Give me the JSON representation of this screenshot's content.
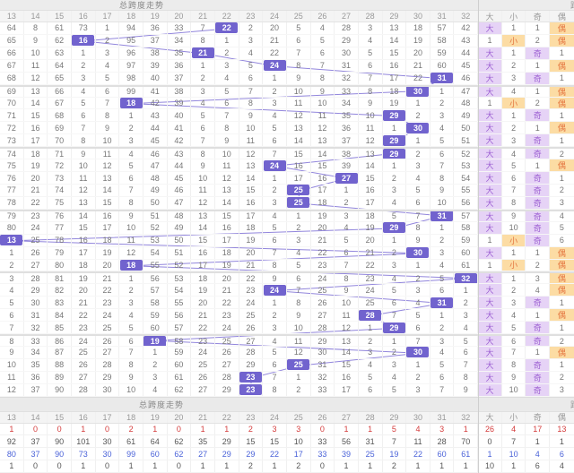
{
  "title": "总跨度走势",
  "right_partial_title": "跨",
  "footer": {
    "title": "总跨度走势",
    "right_partial_title": "跨"
  },
  "colors": {
    "highlight": "#7163CE",
    "trend_line": "#8C7FDA",
    "purple_bg": "#E6D3F6",
    "purple_text": "#9C5FD2",
    "orange_bg": "#FCDCA4",
    "orange_text": "#E4743E",
    "red": "#D43B3B",
    "blue": "#4A62D8"
  },
  "chart_data": {
    "type": "table",
    "title": "总跨度走势",
    "columns": [
      "13",
      "14",
      "15",
      "16",
      "17",
      "18",
      "19",
      "20",
      "21",
      "22",
      "23",
      "24",
      "25",
      "26",
      "27",
      "28",
      "29",
      "30",
      "31",
      "32",
      "大",
      "小",
      "奇",
      "偶"
    ],
    "span_min": 13,
    "span_max": 32,
    "highlight_sequence": [
      22,
      16,
      21,
      24,
      31,
      30,
      18,
      29,
      30,
      29,
      29,
      24,
      27,
      25,
      25,
      31,
      29,
      13,
      30,
      18,
      32,
      24,
      31,
      28,
      29,
      19,
      30,
      25,
      23,
      23
    ],
    "rows": [
      {
        "miss": [
          "64",
          "8",
          "61",
          "73",
          "1",
          "94",
          "36",
          "33",
          "7",
          "22",
          "2",
          "20",
          "5",
          "4",
          "28",
          "3",
          "13",
          "18",
          "57",
          "42"
        ],
        "hl": 22,
        "dxjo": [
          "大",
          "1",
          "1",
          "偶"
        ]
      },
      {
        "miss": [
          "65",
          "9",
          "62",
          "16",
          "2",
          "95",
          "37",
          "34",
          "8",
          "1",
          "3",
          "21",
          "6",
          "5",
          "29",
          "4",
          "14",
          "19",
          "58",
          "43"
        ],
        "hl": 16,
        "dxjo": [
          "1",
          "小",
          "2",
          "偶"
        ]
      },
      {
        "miss": [
          "66",
          "10",
          "63",
          "1",
          "3",
          "96",
          "38",
          "35",
          "21",
          "2",
          "4",
          "22",
          "7",
          "6",
          "30",
          "5",
          "15",
          "20",
          "59",
          "44"
        ],
        "hl": 21,
        "dxjo": [
          "大",
          "1",
          "奇",
          "1"
        ]
      },
      {
        "miss": [
          "67",
          "11",
          "64",
          "2",
          "4",
          "97",
          "39",
          "36",
          "1",
          "3",
          "5",
          "24",
          "8",
          "7",
          "31",
          "6",
          "16",
          "21",
          "60",
          "45"
        ],
        "hl": 24,
        "dxjo": [
          "大",
          "2",
          "1",
          "偶"
        ]
      },
      {
        "miss": [
          "68",
          "12",
          "65",
          "3",
          "5",
          "98",
          "40",
          "37",
          "2",
          "4",
          "6",
          "1",
          "9",
          "8",
          "32",
          "7",
          "17",
          "22",
          "31",
          "46"
        ],
        "hl": 31,
        "dxjo": [
          "大",
          "3",
          "奇",
          "1"
        ]
      },
      {
        "miss": [
          "69",
          "13",
          "66",
          "4",
          "6",
          "99",
          "41",
          "38",
          "3",
          "5",
          "7",
          "2",
          "10",
          "9",
          "33",
          "8",
          "18",
          "30",
          "1",
          "47"
        ],
        "hl": 30,
        "dxjo": [
          "大",
          "4",
          "1",
          "偶"
        ]
      },
      {
        "miss": [
          "70",
          "14",
          "67",
          "5",
          "7",
          "18",
          "42",
          "39",
          "4",
          "6",
          "8",
          "3",
          "11",
          "10",
          "34",
          "9",
          "19",
          "1",
          "2",
          "48"
        ],
        "hl": 18,
        "dxjo": [
          "1",
          "小",
          "2",
          "偶"
        ]
      },
      {
        "miss": [
          "71",
          "15",
          "68",
          "6",
          "8",
          "1",
          "43",
          "40",
          "5",
          "7",
          "9",
          "4",
          "12",
          "11",
          "35",
          "10",
          "29",
          "2",
          "3",
          "49"
        ],
        "hl": 29,
        "dxjo": [
          "大",
          "1",
          "奇",
          "1"
        ]
      },
      {
        "miss": [
          "72",
          "16",
          "69",
          "7",
          "9",
          "2",
          "44",
          "41",
          "6",
          "8",
          "10",
          "5",
          "13",
          "12",
          "36",
          "11",
          "1",
          "30",
          "4",
          "50"
        ],
        "hl": 30,
        "dxjo": [
          "大",
          "2",
          "1",
          "偶"
        ]
      },
      {
        "miss": [
          "73",
          "17",
          "70",
          "8",
          "10",
          "3",
          "45",
          "42",
          "7",
          "9",
          "11",
          "6",
          "14",
          "13",
          "37",
          "12",
          "29",
          "1",
          "5",
          "51"
        ],
        "hl": 29,
        "dxjo": [
          "大",
          "3",
          "奇",
          "1"
        ]
      },
      {
        "miss": [
          "74",
          "18",
          "71",
          "9",
          "11",
          "4",
          "46",
          "43",
          "8",
          "10",
          "12",
          "7",
          "15",
          "14",
          "38",
          "13",
          "29",
          "2",
          "6",
          "52"
        ],
        "hl": 29,
        "dxjo": [
          "大",
          "4",
          "奇",
          "2"
        ]
      },
      {
        "miss": [
          "75",
          "19",
          "72",
          "10",
          "12",
          "5",
          "47",
          "44",
          "9",
          "11",
          "13",
          "24",
          "16",
          "15",
          "39",
          "14",
          "1",
          "3",
          "7",
          "53"
        ],
        "hl": 24,
        "dxjo": [
          "大",
          "5",
          "1",
          "偶"
        ]
      },
      {
        "miss": [
          "76",
          "20",
          "73",
          "11",
          "13",
          "6",
          "48",
          "45",
          "10",
          "12",
          "14",
          "1",
          "17",
          "16",
          "27",
          "15",
          "2",
          "4",
          "8",
          "54"
        ],
        "hl": 27,
        "dxjo": [
          "大",
          "6",
          "奇",
          "1"
        ]
      },
      {
        "miss": [
          "77",
          "21",
          "74",
          "12",
          "14",
          "7",
          "49",
          "46",
          "11",
          "13",
          "15",
          "2",
          "25",
          "17",
          "1",
          "16",
          "3",
          "5",
          "9",
          "55"
        ],
        "hl": 25,
        "dxjo": [
          "大",
          "7",
          "奇",
          "2"
        ]
      },
      {
        "miss": [
          "78",
          "22",
          "75",
          "13",
          "15",
          "8",
          "50",
          "47",
          "12",
          "14",
          "16",
          "3",
          "25",
          "18",
          "2",
          "17",
          "4",
          "6",
          "10",
          "56"
        ],
        "hl": 25,
        "dxjo": [
          "大",
          "8",
          "奇",
          "3"
        ]
      },
      {
        "miss": [
          "79",
          "23",
          "76",
          "14",
          "16",
          "9",
          "51",
          "48",
          "13",
          "15",
          "17",
          "4",
          "1",
          "19",
          "3",
          "18",
          "5",
          "7",
          "31",
          "57"
        ],
        "hl": 31,
        "dxjo": [
          "大",
          "9",
          "奇",
          "4"
        ]
      },
      {
        "miss": [
          "80",
          "24",
          "77",
          "15",
          "17",
          "10",
          "52",
          "49",
          "14",
          "16",
          "18",
          "5",
          "2",
          "20",
          "4",
          "19",
          "29",
          "8",
          "1",
          "58"
        ],
        "hl": 29,
        "dxjo": [
          "大",
          "10",
          "奇",
          "5"
        ]
      },
      {
        "miss": [
          "13",
          "25",
          "78",
          "16",
          "18",
          "11",
          "53",
          "50",
          "15",
          "17",
          "19",
          "6",
          "3",
          "21",
          "5",
          "20",
          "1",
          "9",
          "2",
          "59"
        ],
        "hl": 13,
        "dxjo": [
          "1",
          "小",
          "奇",
          "6"
        ]
      },
      {
        "miss": [
          "1",
          "26",
          "79",
          "17",
          "19",
          "12",
          "54",
          "51",
          "16",
          "18",
          "20",
          "7",
          "4",
          "22",
          "6",
          "21",
          "2",
          "30",
          "3",
          "60"
        ],
        "hl": 30,
        "dxjo": [
          "大",
          "1",
          "1",
          "偶"
        ]
      },
      {
        "miss": [
          "2",
          "27",
          "80",
          "18",
          "20",
          "18",
          "55",
          "52",
          "17",
          "19",
          "21",
          "8",
          "5",
          "23",
          "7",
          "22",
          "3",
          "1",
          "4",
          "61"
        ],
        "hl": 18,
        "dxjo": [
          "1",
          "小",
          "2",
          "偶"
        ]
      },
      {
        "miss": [
          "3",
          "28",
          "81",
          "19",
          "21",
          "1",
          "56",
          "53",
          "18",
          "20",
          "22",
          "9",
          "6",
          "24",
          "8",
          "23",
          "4",
          "2",
          "5",
          "32"
        ],
        "hl": 32,
        "dxjo": [
          "大",
          "1",
          "3",
          "偶"
        ]
      },
      {
        "miss": [
          "4",
          "29",
          "82",
          "20",
          "22",
          "2",
          "57",
          "54",
          "19",
          "21",
          "23",
          "24",
          "7",
          "25",
          "9",
          "24",
          "5",
          "3",
          "6",
          "1"
        ],
        "hl": 24,
        "dxjo": [
          "大",
          "2",
          "4",
          "偶"
        ]
      },
      {
        "miss": [
          "5",
          "30",
          "83",
          "21",
          "23",
          "3",
          "58",
          "55",
          "20",
          "22",
          "24",
          "1",
          "8",
          "26",
          "10",
          "25",
          "6",
          "4",
          "31",
          "2"
        ],
        "hl": 31,
        "dxjo": [
          "大",
          "3",
          "奇",
          "1"
        ]
      },
      {
        "miss": [
          "6",
          "31",
          "84",
          "22",
          "24",
          "4",
          "59",
          "56",
          "21",
          "23",
          "25",
          "2",
          "9",
          "27",
          "11",
          "28",
          "7",
          "5",
          "1",
          "3"
        ],
        "hl": 28,
        "dxjo": [
          "大",
          "4",
          "1",
          "偶"
        ]
      },
      {
        "miss": [
          "7",
          "32",
          "85",
          "23",
          "25",
          "5",
          "60",
          "57",
          "22",
          "24",
          "26",
          "3",
          "10",
          "28",
          "12",
          "1",
          "29",
          "6",
          "2",
          "4"
        ],
        "hl": 29,
        "dxjo": [
          "大",
          "5",
          "奇",
          "1"
        ]
      },
      {
        "miss": [
          "8",
          "33",
          "86",
          "24",
          "26",
          "6",
          "19",
          "58",
          "23",
          "25",
          "27",
          "4",
          "11",
          "29",
          "13",
          "2",
          "1",
          "7",
          "3",
          "5"
        ],
        "hl": 19,
        "dxjo": [
          "大",
          "6",
          "奇",
          "2"
        ]
      },
      {
        "miss": [
          "9",
          "34",
          "87",
          "25",
          "27",
          "7",
          "1",
          "59",
          "24",
          "26",
          "28",
          "5",
          "12",
          "30",
          "14",
          "3",
          "2",
          "30",
          "4",
          "6"
        ],
        "hl": 30,
        "dxjo": [
          "大",
          "7",
          "1",
          "偶"
        ]
      },
      {
        "miss": [
          "10",
          "35",
          "88",
          "26",
          "28",
          "8",
          "2",
          "60",
          "25",
          "27",
          "29",
          "6",
          "25",
          "31",
          "15",
          "4",
          "3",
          "1",
          "5",
          "7"
        ],
        "hl": 25,
        "dxjo": [
          "大",
          "8",
          "奇",
          "1"
        ]
      },
      {
        "miss": [
          "11",
          "36",
          "89",
          "27",
          "29",
          "9",
          "3",
          "61",
          "26",
          "28",
          "23",
          "7",
          "1",
          "32",
          "16",
          "5",
          "4",
          "2",
          "6",
          "8"
        ],
        "hl": 23,
        "dxjo": [
          "大",
          "9",
          "奇",
          "2"
        ]
      },
      {
        "miss": [
          "12",
          "37",
          "90",
          "28",
          "30",
          "10",
          "4",
          "62",
          "27",
          "29",
          "23",
          "8",
          "2",
          "33",
          "17",
          "6",
          "5",
          "3",
          "7",
          "9"
        ],
        "hl": 23,
        "dxjo": [
          "大",
          "10",
          "奇",
          "3"
        ]
      }
    ],
    "footer_stats": [
      {
        "color": "red",
        "values": [
          "1",
          "0",
          "0",
          "1",
          "0",
          "2",
          "1",
          "0",
          "1",
          "1",
          "2",
          "3",
          "3",
          "0",
          "1",
          "1",
          "5",
          "4",
          "3",
          "1",
          "26",
          "4",
          "17",
          "13"
        ]
      },
      {
        "color": "dark",
        "values": [
          "92",
          "37",
          "90",
          "101",
          "30",
          "61",
          "64",
          "62",
          "35",
          "29",
          "15",
          "15",
          "10",
          "33",
          "56",
          "31",
          "7",
          "11",
          "28",
          "70",
          "0",
          "7",
          "1",
          "1"
        ]
      },
      {
        "color": "blue",
        "values": [
          "80",
          "37",
          "90",
          "73",
          "30",
          "99",
          "60",
          "62",
          "27",
          "29",
          "29",
          "22",
          "17",
          "33",
          "39",
          "25",
          "19",
          "22",
          "60",
          "61",
          "1",
          "10",
          "4",
          "6"
        ]
      },
      {
        "color": "dark",
        "values": [
          "1",
          "0",
          "0",
          "1",
          "0",
          "1",
          "1",
          "0",
          "1",
          "1",
          "2",
          "1",
          "2",
          "0",
          "1",
          "1",
          "2",
          "1",
          "1",
          "1",
          "10",
          "1",
          "6",
          "4"
        ]
      }
    ]
  }
}
